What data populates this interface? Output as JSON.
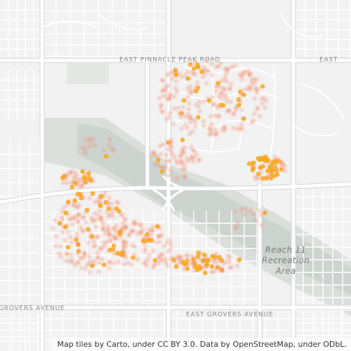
{
  "map": {
    "labels": {
      "pinnacle_left": "EAST PINNACLE PEAK ROAD",
      "pinnacle_right": "EAST",
      "grovers_left": "GROVERS AVENUE",
      "grovers_right": "EAST GROVERS AVENUE",
      "reach_line1": "Reach 11",
      "reach_line2": "Recreation",
      "reach_line3": "Area"
    },
    "attribution": "Map tiles by Carto, under CC BY 3.0. Data by OpenStreetMap, under ODbL.",
    "colors": {
      "background": "#f2f2f2",
      "street": "#ffffff",
      "street_casing": "#d6d6d6",
      "park": "#dfe3df",
      "recreation_area": "#cfd5d1",
      "point_dim": "#f28b6f",
      "point_bright": "#f9a825"
    },
    "layers": [
      "base-streets",
      "recreation-area",
      "point-density"
    ]
  }
}
